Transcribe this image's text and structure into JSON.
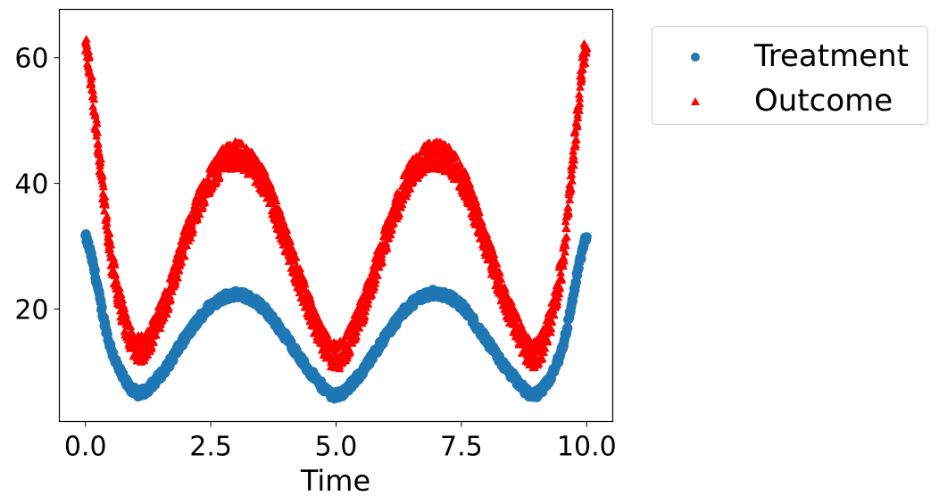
{
  "chart_data": {
    "type": "scatter",
    "title": "",
    "xlabel": "Time",
    "ylabel": "",
    "xlim": [
      -0.52,
      10.52
    ],
    "ylim": [
      2.1,
      67.7
    ],
    "x_ticks": [
      0.0,
      2.5,
      5.0,
      7.5,
      10.0
    ],
    "x_tick_labels": [
      "0.0",
      "2.5",
      "5.0",
      "7.5",
      "10.0"
    ],
    "y_ticks": [
      20,
      40,
      60
    ],
    "y_tick_labels": [
      "20",
      "40",
      "60"
    ],
    "grid": false,
    "legend_position": "outside upper right",
    "x": [
      0,
      0.5,
      1.0,
      1.5,
      2.0,
      2.5,
      3.0,
      3.5,
      4.0,
      4.5,
      5.0,
      5.5,
      6.0,
      6.5,
      7.0,
      7.5,
      8.0,
      8.5,
      9.0,
      9.5,
      10.0
    ],
    "series": [
      {
        "name": "Treatment",
        "marker": "circle",
        "color": "#1f77b4",
        "values": [
          31.5,
          14.0,
          6.8,
          9.5,
          15.5,
          20.5,
          22.3,
          20.5,
          15.5,
          9.8,
          6.3,
          9.8,
          15.8,
          20.8,
          22.5,
          20.5,
          15.0,
          9.5,
          6.5,
          13.5,
          31.5
        ],
        "noise": 0.6
      },
      {
        "name": "Outcome",
        "marker": "triangle",
        "color": "#ff0000",
        "values": [
          62.0,
          29.0,
          14.0,
          19.0,
          31.0,
          41.0,
          44.5,
          41.0,
          31.0,
          19.5,
          12.5,
          19.5,
          31.5,
          41.5,
          44.5,
          41.0,
          30.0,
          19.0,
          13.0,
          27.0,
          62.5
        ],
        "noise": 2.2
      }
    ]
  },
  "legend": {
    "items": [
      {
        "label": "Treatment",
        "marker": "circle",
        "color": "#1f77b4"
      },
      {
        "label": "Outcome",
        "marker": "triangle",
        "color": "#ff0000"
      }
    ]
  }
}
